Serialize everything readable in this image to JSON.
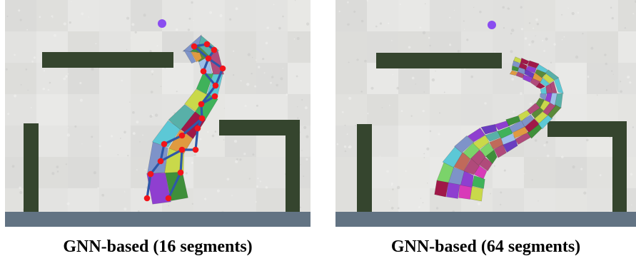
{
  "panels": [
    {
      "id": "left",
      "caption": "GNN-based (16 segments)",
      "segments": 16
    },
    {
      "id": "right",
      "caption": "GNN-based (64 segments)",
      "segments": 64
    }
  ],
  "colors": {
    "wall_bg": "#e4e4e2",
    "obstacle": "#35452e",
    "floor": "#627383",
    "target_dot": "#8a4df0",
    "skeleton_line": "#2e58a8",
    "skeleton_node": "#f2141a",
    "segment_palette": [
      "#8f3fd0",
      "#d83ab8",
      "#3fb25a",
      "#7bd36a",
      "#e09a40",
      "#5cc8d6",
      "#3f8f3a",
      "#c9d94a",
      "#9ec0ea",
      "#a01848",
      "#7e93c9",
      "#5a8a3a",
      "#b04a7a",
      "#6a3dc0",
      "#58b0a8",
      "#c06a5a"
    ]
  }
}
